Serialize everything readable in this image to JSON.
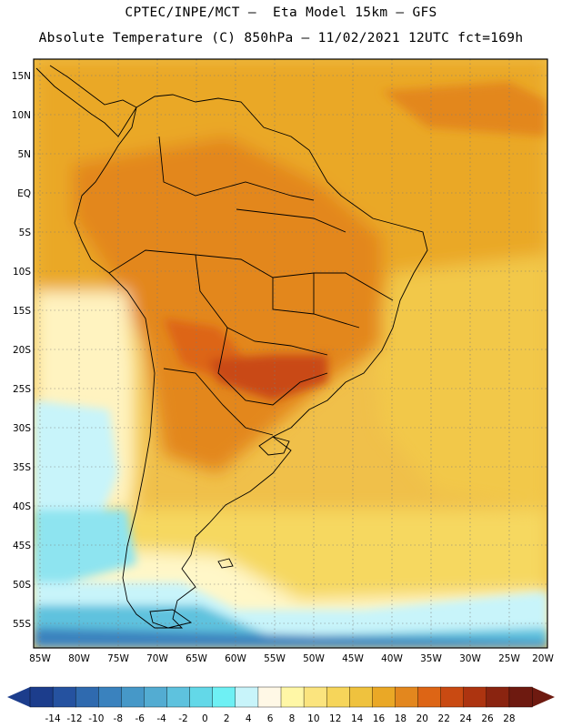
{
  "header": {
    "line1": "CPTEC/INPE/MCT –  Eta Model 15km – GFS",
    "line2": "Absolute Temperature (C) 850hPa – 11/02/2021 12UTC fct=169h"
  },
  "map": {
    "lat_labels": [
      "15N",
      "10N",
      "5N",
      "EQ",
      "5S",
      "10S",
      "15S",
      "20S",
      "25S",
      "30S",
      "35S",
      "40S",
      "45S",
      "50S",
      "55S"
    ],
    "lon_labels": [
      "85W",
      "80W",
      "75W",
      "70W",
      "65W",
      "60W",
      "55W",
      "50W",
      "45W",
      "40W",
      "35W",
      "30W",
      "25W",
      "20W"
    ]
  },
  "colorbar": {
    "ticks": [
      "-14",
      "-12",
      "-10",
      "-8",
      "-6",
      "-4",
      "-2",
      "0",
      "2",
      "4",
      "6",
      "8",
      "10",
      "12",
      "14",
      "16",
      "18",
      "20",
      "22",
      "24",
      "26",
      "28"
    ],
    "colors": [
      "#1c3d8c",
      "#2552a0",
      "#2f6aaf",
      "#3a82be",
      "#4698c8",
      "#53acd2",
      "#5ec2de",
      "#63d8e8",
      "#6ef0f4",
      "#c8f4fa",
      "#fff8e6",
      "#fff7a6",
      "#fbe47e",
      "#f6d55a",
      "#efc23e",
      "#eaa826",
      "#e3871e",
      "#dd6515",
      "#c94a12",
      "#ad3410",
      "#8a2410",
      "#6e1a10"
    ]
  }
}
